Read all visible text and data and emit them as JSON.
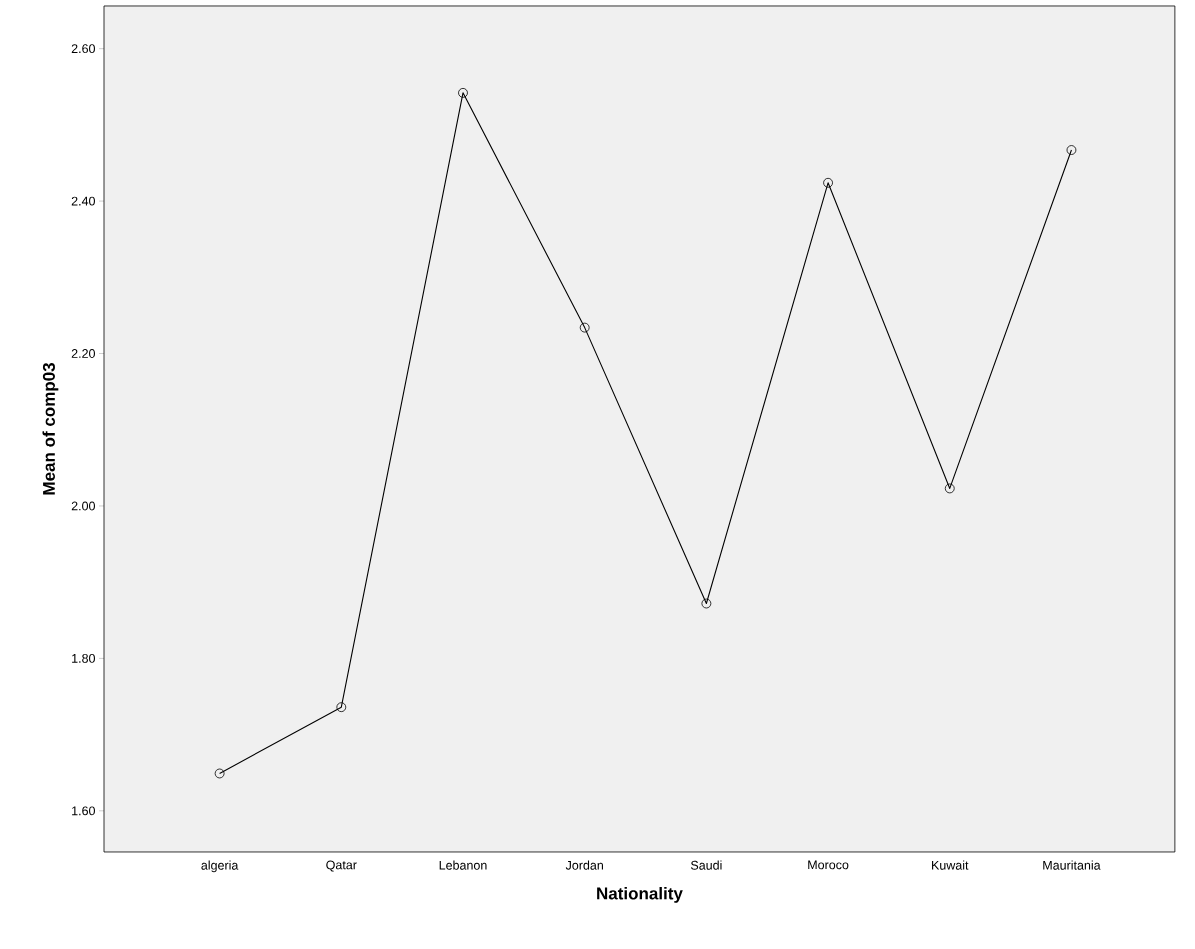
{
  "chart_data": {
    "type": "line",
    "xlabel": "Nationality",
    "ylabel": "Mean of comp03",
    "categories": [
      "algeria",
      "Qatar",
      "Lebanon",
      "Jordan",
      "Saudi",
      "Moroco",
      "Kuwait",
      "Mauritania"
    ],
    "series": [
      {
        "color": "#000000",
        "values": [
          1.649,
          1.736,
          2.542,
          2.234,
          1.872,
          2.424,
          2.023,
          2.467
        ]
      }
    ],
    "ylim": [
      1.546,
      2.656
    ],
    "yticks": [
      {
        "value": 1.6,
        "label": "1.60"
      },
      {
        "value": 1.8,
        "label": "1.80"
      },
      {
        "value": 2.0,
        "label": "2.00"
      },
      {
        "value": 2.2,
        "label": "2.20"
      },
      {
        "value": 2.4,
        "label": "2.40"
      },
      {
        "value": 2.6,
        "label": "2.60"
      }
    ],
    "marker": "circle",
    "line_style": "solid",
    "grid": false
  }
}
